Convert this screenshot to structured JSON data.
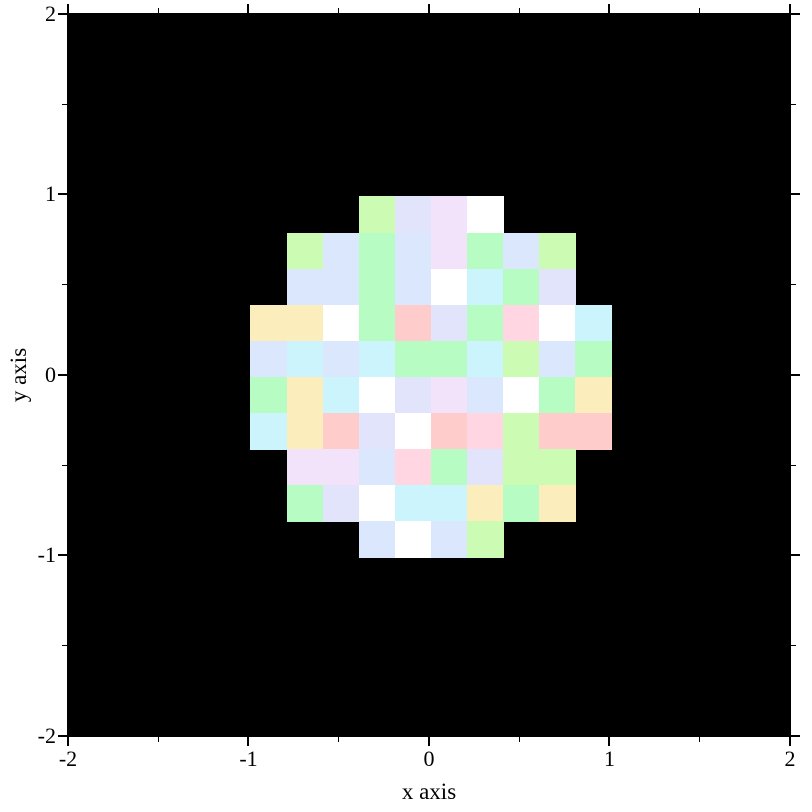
{
  "figure": {
    "background": "#ffffff",
    "plot_background": "#000000",
    "frame_color": "#000000"
  },
  "chart_data": {
    "type": "heatmap",
    "title": "",
    "xlabel": "x axis",
    "ylabel": "y axis",
    "xlim": [
      -2,
      2
    ],
    "ylim": [
      -2,
      2
    ],
    "x_major_ticks": [
      -2,
      -1,
      0,
      1,
      2
    ],
    "x_major_tick_labels": [
      "-2",
      "-1",
      "0",
      "1",
      "2"
    ],
    "x_minor_ticks": [
      -1.5,
      -0.5,
      0.5,
      1.5
    ],
    "y_major_ticks": [
      -2,
      -1,
      0,
      1,
      2
    ],
    "y_major_tick_labels": [
      "-2",
      "-1",
      "0",
      "1",
      "2"
    ],
    "y_minor_ticks": [
      -1.5,
      -0.5,
      0.5,
      1.5
    ],
    "grid": false,
    "legend": false,
    "cell_size": 0.2,
    "mask_note": "20x20 grid of 0.2-unit cells; only cells whose centers lie inside the unit circle are colored, rest is black background",
    "palette": {
      "mint_green": "#b6fcc3",
      "yellow_green": "#ccfcb4",
      "periwinkle": "#dbe7fc",
      "lavender": "#e2e4fc",
      "pale_cyan": "#ccf4fd",
      "thistle": "#f2e2fa",
      "rose_pink": "#ffd6e2",
      "salmon": "#ffcccc",
      "wheat": "#fcedbc",
      "white": "#ffffff"
    },
    "rows": [
      {
        "y_bottom": 0.8,
        "x_left": -0.4,
        "cells": [
          "yellow_green",
          "lavender",
          "thistle",
          "white"
        ]
      },
      {
        "y_bottom": 0.6,
        "x_left": -0.8,
        "cells": [
          "yellow_green",
          "periwinkle",
          "mint_green",
          "periwinkle",
          "thistle",
          "mint_green",
          "periwinkle",
          "yellow_green"
        ]
      },
      {
        "y_bottom": 0.4,
        "x_left": -0.8,
        "cells": [
          "periwinkle",
          "periwinkle",
          "mint_green",
          "periwinkle",
          "white",
          "pale_cyan",
          "mint_green",
          "lavender"
        ]
      },
      {
        "y_bottom": 0.2,
        "x_left": -1.0,
        "cells": [
          "wheat",
          "wheat",
          "white",
          "mint_green",
          "salmon",
          "lavender",
          "mint_green",
          "rose_pink",
          "white",
          "pale_cyan"
        ]
      },
      {
        "y_bottom": 0.0,
        "x_left": -1.0,
        "cells": [
          "periwinkle",
          "pale_cyan",
          "periwinkle",
          "pale_cyan",
          "mint_green",
          "mint_green",
          "pale_cyan",
          "yellow_green",
          "periwinkle",
          "mint_green"
        ]
      },
      {
        "y_bottom": -0.2,
        "x_left": -1.0,
        "cells": [
          "mint_green",
          "wheat",
          "pale_cyan",
          "white",
          "lavender",
          "thistle",
          "periwinkle",
          "white",
          "mint_green",
          "wheat"
        ]
      },
      {
        "y_bottom": -0.4,
        "x_left": -1.0,
        "cells": [
          "pale_cyan",
          "wheat",
          "salmon",
          "lavender",
          "white",
          "salmon",
          "rose_pink",
          "yellow_green",
          "salmon",
          "salmon"
        ]
      },
      {
        "y_bottom": -0.6,
        "x_left": -0.8,
        "cells": [
          "thistle",
          "thistle",
          "periwinkle",
          "rose_pink",
          "mint_green",
          "lavender",
          "yellow_green",
          "yellow_green"
        ]
      },
      {
        "y_bottom": -0.8,
        "x_left": -0.8,
        "cells": [
          "mint_green",
          "lavender",
          "white",
          "pale_cyan",
          "pale_cyan",
          "wheat",
          "mint_green",
          "wheat"
        ]
      },
      {
        "y_bottom": -1.0,
        "x_left": -0.4,
        "cells": [
          "periwinkle",
          "white",
          "periwinkle",
          "yellow_green"
        ]
      }
    ]
  }
}
